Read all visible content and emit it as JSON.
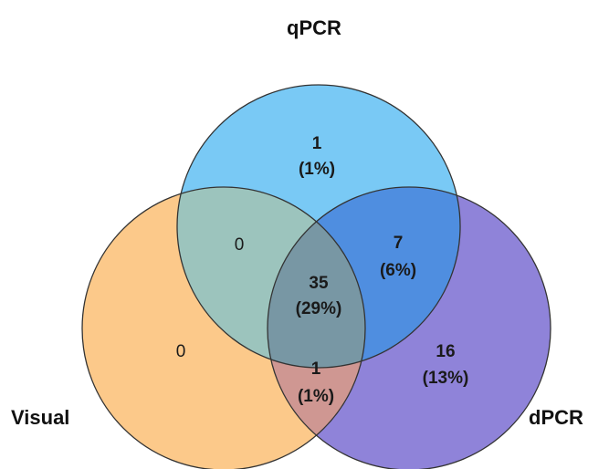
{
  "sets": [
    {
      "id": "qpcr",
      "label": "qPCR",
      "fill": "#79c9f5",
      "stroke": "#333333"
    },
    {
      "id": "visual",
      "label": "Visual",
      "fill": "#fcc98a",
      "stroke": "#333333"
    },
    {
      "id": "dpcr",
      "label": "dPCR",
      "fill": "#8f83d9",
      "stroke": "#333333"
    }
  ],
  "regions": {
    "qpcr_only": {
      "count": "1",
      "percent": "(1%)"
    },
    "visual_qpcr": {
      "count": "0",
      "percent": ""
    },
    "qpcr_dpcr": {
      "count": "7",
      "percent": "(6%)"
    },
    "all_three": {
      "count": "35",
      "percent": "(29%)"
    },
    "visual_only": {
      "count": "0",
      "percent": ""
    },
    "visual_dpcr": {
      "count": "1",
      "percent": "(1%)"
    },
    "dpcr_only": {
      "count": "16",
      "percent": "(13%)"
    }
  }
}
